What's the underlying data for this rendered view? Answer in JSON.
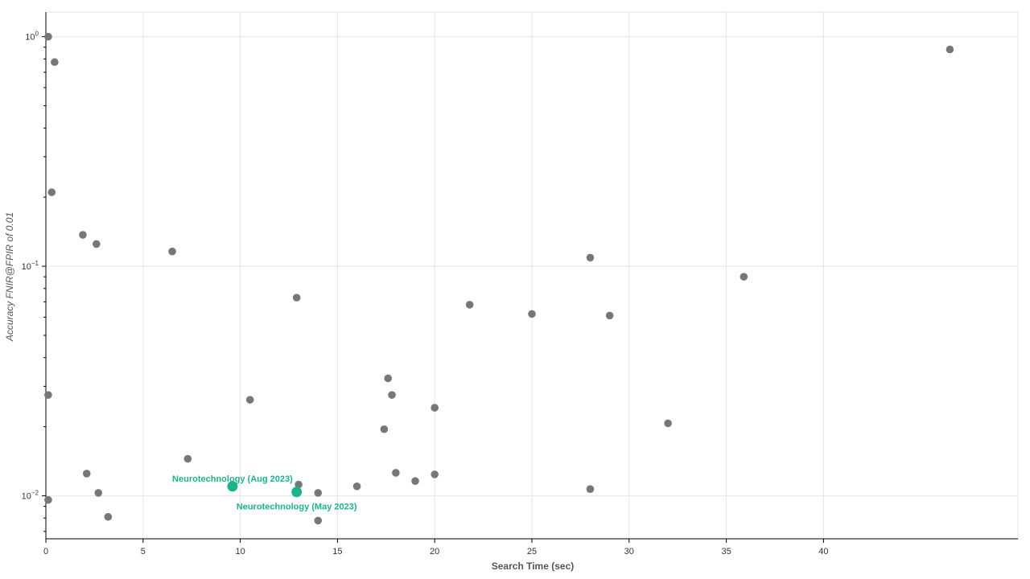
{
  "colors": {
    "point": "#777777",
    "highlight": "#1db38a",
    "grid": "#e6e6e6",
    "axis": "#000000"
  },
  "chart_data": {
    "type": "scatter",
    "title": "",
    "xlabel": "Search Time (sec)",
    "ylabel": "Accuracy FNIR@FPIR of 0.01",
    "xlim": [
      0,
      50
    ],
    "ylim": [
      0.0065,
      1.28
    ],
    "yscale": "log",
    "grid": true,
    "x_ticks": [
      0,
      5,
      10,
      15,
      20,
      25,
      30,
      35,
      40
    ],
    "x_tick_labels": [
      "0",
      "5",
      "10",
      "15",
      "20",
      "25",
      "30",
      "35",
      "40"
    ],
    "y_ticks": [
      1,
      0.1,
      0.01
    ],
    "y_tick_labels": [
      {
        "base": "10",
        "exp": "0"
      },
      {
        "base": "10",
        "exp": "−1"
      },
      {
        "base": "10",
        "exp": "−2"
      }
    ],
    "points": [
      {
        "x": 0.12,
        "y": 1.0
      },
      {
        "x": 0.45,
        "y": 0.775
      },
      {
        "x": 0.3,
        "y": 0.21
      },
      {
        "x": 1.9,
        "y": 0.137
      },
      {
        "x": 2.6,
        "y": 0.125
      },
      {
        "x": 6.5,
        "y": 0.116
      },
      {
        "x": 12.9,
        "y": 0.073
      },
      {
        "x": 21.8,
        "y": 0.068
      },
      {
        "x": 25.0,
        "y": 0.062
      },
      {
        "x": 28.0,
        "y": 0.109
      },
      {
        "x": 29.0,
        "y": 0.061
      },
      {
        "x": 35.9,
        "y": 0.09
      },
      {
        "x": 46.5,
        "y": 0.88
      },
      {
        "x": 0.12,
        "y": 0.0275
      },
      {
        "x": 10.5,
        "y": 0.0262
      },
      {
        "x": 17.6,
        "y": 0.0325
      },
      {
        "x": 17.8,
        "y": 0.0275
      },
      {
        "x": 20.0,
        "y": 0.0242
      },
      {
        "x": 17.4,
        "y": 0.0195
      },
      {
        "x": 32.0,
        "y": 0.0207
      },
      {
        "x": 7.3,
        "y": 0.0145
      },
      {
        "x": 2.1,
        "y": 0.0125
      },
      {
        "x": 18.0,
        "y": 0.0126
      },
      {
        "x": 20.0,
        "y": 0.0124
      },
      {
        "x": 19.0,
        "y": 0.0116
      },
      {
        "x": 13.0,
        "y": 0.0112
      },
      {
        "x": 16.0,
        "y": 0.011
      },
      {
        "x": 28.0,
        "y": 0.0107
      },
      {
        "x": 2.7,
        "y": 0.0103
      },
      {
        "x": 14.0,
        "y": 0.0103
      },
      {
        "x": 0.12,
        "y": 0.0096
      },
      {
        "x": 3.2,
        "y": 0.0081
      },
      {
        "x": 14.0,
        "y": 0.0078
      }
    ],
    "highlights": [
      {
        "x": 9.6,
        "y": 0.011,
        "label": "Neurotechnology  (Aug 2023)",
        "label_position": "above"
      },
      {
        "x": 12.9,
        "y": 0.0104,
        "label": "Neurotechnology  (May 2023)",
        "label_position": "below"
      }
    ]
  }
}
